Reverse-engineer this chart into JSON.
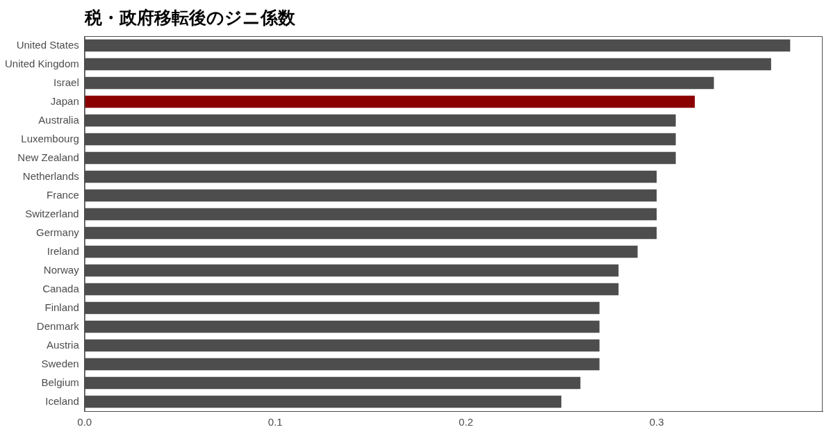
{
  "chart_data": {
    "type": "bar",
    "orientation": "horizontal",
    "title": "税・政府移転後のジニ係数",
    "categories": [
      "United States",
      "United Kingdom",
      "Israel",
      "Japan",
      "Australia",
      "Luxembourg",
      "New Zealand",
      "Netherlands",
      "France",
      "Switzerland",
      "Germany",
      "Ireland",
      "Norway",
      "Canada",
      "Finland",
      "Denmark",
      "Austria",
      "Sweden",
      "Belgium",
      "Iceland"
    ],
    "values": [
      0.37,
      0.36,
      0.33,
      0.32,
      0.31,
      0.31,
      0.31,
      0.3,
      0.3,
      0.3,
      0.3,
      0.29,
      0.28,
      0.28,
      0.27,
      0.27,
      0.27,
      0.27,
      0.26,
      0.25
    ],
    "colors": [
      "#4d4d4d",
      "#4d4d4d",
      "#4d4d4d",
      "#8b0000",
      "#4d4d4d",
      "#4d4d4d",
      "#4d4d4d",
      "#4d4d4d",
      "#4d4d4d",
      "#4d4d4d",
      "#4d4d4d",
      "#4d4d4d",
      "#4d4d4d",
      "#4d4d4d",
      "#4d4d4d",
      "#4d4d4d",
      "#4d4d4d",
      "#4d4d4d",
      "#4d4d4d",
      "#4d4d4d"
    ],
    "xlim": [
      0,
      0.387
    ],
    "xticks": [
      {
        "value": 0,
        "label": "0.0"
      },
      0.1,
      0.2,
      0.3
    ],
    "grid": false,
    "legend": false
  }
}
